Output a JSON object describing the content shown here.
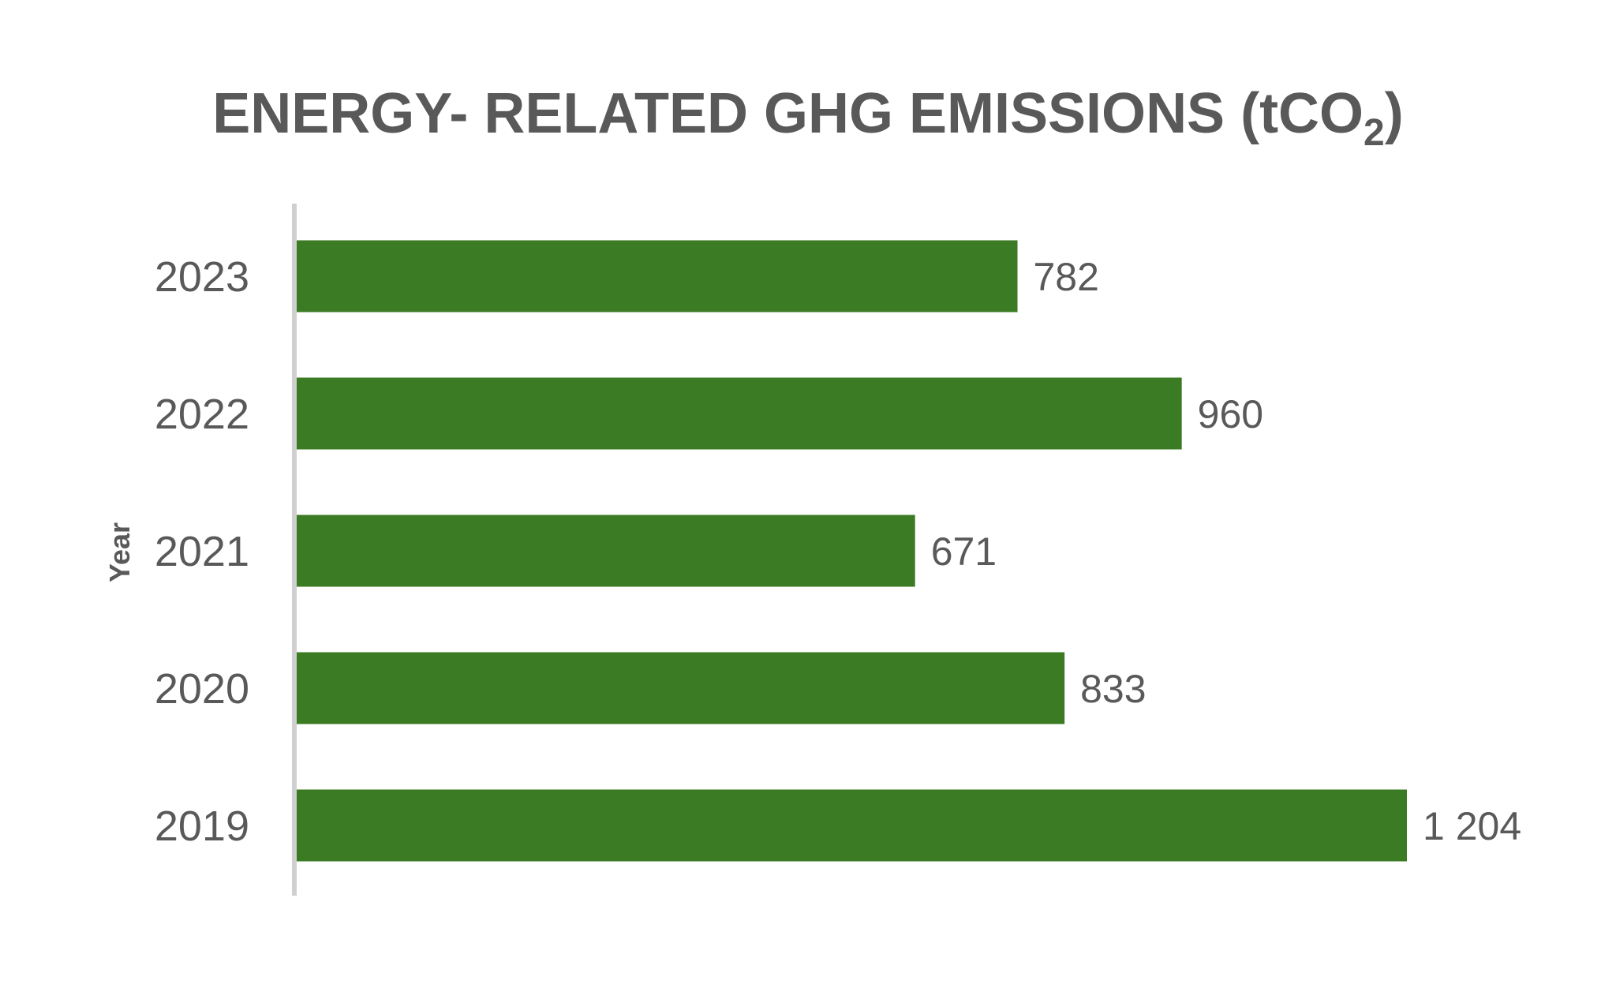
{
  "chart_data": {
    "type": "bar",
    "orientation": "horizontal",
    "title": {
      "main": "ENERGY- RELATED GHG EMISSIONS (tCO",
      "subscript": "2",
      "close": ")"
    },
    "ylabel": "Year",
    "xlabel": "",
    "categories": [
      "2023",
      "2022",
      "2021",
      "2020",
      "2019"
    ],
    "values": [
      782,
      960,
      671,
      833,
      1204
    ],
    "value_labels": [
      "782",
      "960",
      "671",
      "833",
      "1 204"
    ],
    "xlim": [
      0,
      1204
    ],
    "grid": false,
    "legend": "none",
    "colors": {
      "bar": "#3a7b23",
      "text": "#595959",
      "axis": "#d0d0d0"
    }
  }
}
